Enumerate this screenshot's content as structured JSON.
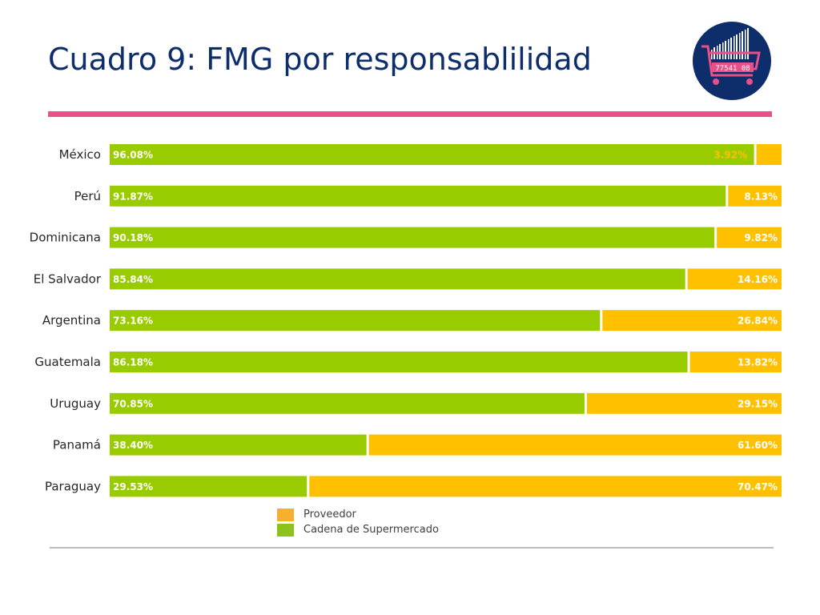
{
  "header": {
    "title": "Cuadro 9: FMG por responsablilidad"
  },
  "logo": {
    "icon": "shopping-cart-barcode-icon",
    "barcode_text": "77541 08",
    "colors": {
      "circle": "#0d2d6b",
      "cart": "#e8508a",
      "bars": "#ffffff"
    }
  },
  "colors": {
    "supermercado": "#99cc00",
    "proveedor": "#ffc000",
    "proveedor_legend": "#f5b030",
    "supermercado_legend": "#8cc21a",
    "title": "#0d2d6b",
    "accent_rule": "#e8508a"
  },
  "chart_data": {
    "type": "bar",
    "orientation": "horizontal",
    "stacked": true,
    "normalized_to_100": true,
    "categories": [
      "México",
      "Perú",
      "Dominicana",
      "El Salvador",
      "Argentina",
      "Guatemala",
      "Uruguay",
      "Panamá",
      "Paraguay"
    ],
    "series": [
      {
        "name": "Cadena de Supermercado",
        "values": [
          96.08,
          91.87,
          90.18,
          85.84,
          73.16,
          86.18,
          70.85,
          38.4,
          29.53
        ],
        "labels": [
          "96.08%",
          "91.87%",
          "90.18%",
          "85.84%",
          "73.16%",
          "86.18%",
          "70.85%",
          "38.40%",
          "29.53%"
        ]
      },
      {
        "name": "Proveedor",
        "values": [
          3.92,
          8.13,
          9.82,
          14.16,
          26.84,
          13.82,
          29.15,
          61.6,
          70.47
        ],
        "labels": [
          "3.92%",
          "8.13%",
          "9.82%",
          "14.16%",
          "26.84%",
          "13.82%",
          "29.15%",
          "61.60%",
          "70.47%"
        ]
      }
    ],
    "xlim": [
      0,
      100
    ],
    "grid": false,
    "legend": {
      "position": "bottom",
      "entries": [
        "Proveedor",
        "Cadena de Supermercado"
      ]
    }
  }
}
